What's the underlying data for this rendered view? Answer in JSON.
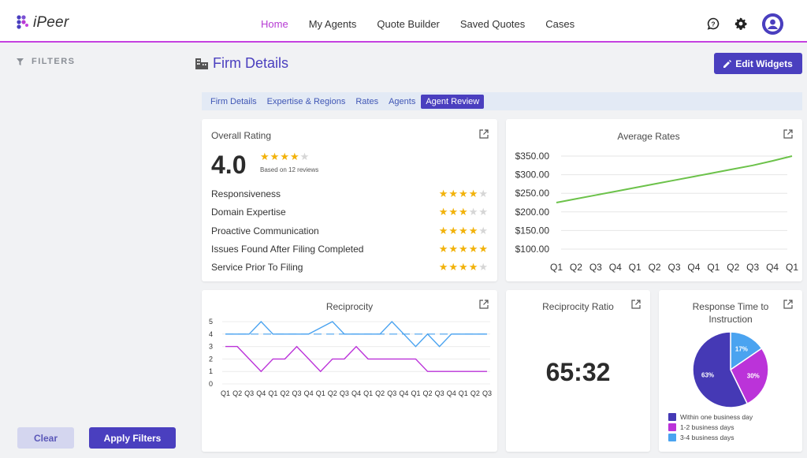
{
  "brand": {
    "name": "iPeer"
  },
  "nav": {
    "items": [
      "Home",
      "My Agents",
      "Quote Builder",
      "Saved Quotes",
      "Cases"
    ],
    "active": 0
  },
  "header_icons": [
    "help-icon",
    "gear-icon",
    "user-avatar-icon"
  ],
  "sidebar": {
    "filters_label": "FILTERS",
    "clear_label": "Clear",
    "apply_label": "Apply Filters"
  },
  "page": {
    "title": "Firm Details",
    "edit_label": "Edit Widgets"
  },
  "tabs": {
    "items": [
      "Firm Details",
      "Expertise & Regions",
      "Rates",
      "Agents",
      "Agent Review"
    ],
    "active": 4
  },
  "overall_rating": {
    "title": "Overall Rating",
    "score": "4.0",
    "stars": 4,
    "based_on": "Based on 12 reviews",
    "criteria": [
      {
        "label": "Responsiveness",
        "stars": 4
      },
      {
        "label": "Domain Expertise",
        "stars": 3
      },
      {
        "label": "Proactive Communication",
        "stars": 4
      },
      {
        "label": "Issues Found After Filing Completed",
        "stars": 5
      },
      {
        "label": "Service Prior To Filing",
        "stars": 4
      }
    ]
  },
  "reciprocity_ratio": {
    "title": "Reciprocity Ratio",
    "value": "65:32"
  },
  "colors": {
    "accent": "#4a3fbf",
    "magenta": "#b63bd3",
    "star": "#f2b20a",
    "green": "#6cc24a",
    "blue": "#4aa3f0",
    "purple": "#bb33d9",
    "navy": "#4539b5"
  },
  "chart_data": [
    {
      "type": "line",
      "title": "Average Rates",
      "x": [
        "Q1",
        "Q2",
        "Q3",
        "Q4",
        "Q1",
        "Q2",
        "Q3",
        "Q4",
        "Q1",
        "Q2",
        "Q3",
        "Q4",
        "Q1"
      ],
      "series": [
        {
          "values": [
            225,
            235,
            245,
            255,
            265,
            275,
            285,
            295,
            305,
            315,
            325,
            337,
            350
          ]
        }
      ],
      "yticks": [
        "$100.00",
        "$150.00",
        "$200.00",
        "$250.00",
        "$300.00",
        "$350.00"
      ],
      "ylim": [
        100,
        350
      ],
      "grid": true
    },
    {
      "type": "line",
      "title": "Reciprocity",
      "x": [
        "Q1",
        "Q2",
        "Q3",
        "Q4",
        "Q1",
        "Q2",
        "Q3",
        "Q4",
        "Q1",
        "Q2",
        "Q3",
        "Q4",
        "Q1",
        "Q2",
        "Q3",
        "Q4",
        "Q1",
        "Q2",
        "Q3",
        "Q4",
        "Q1",
        "Q2",
        "Q3"
      ],
      "series": [
        {
          "values": [
            4,
            4,
            4,
            5,
            4,
            4,
            4,
            4,
            4.5,
            5,
            4,
            4,
            4,
            4,
            5,
            4,
            3,
            4,
            3,
            4,
            4,
            4,
            4
          ],
          "color": "#4aa3f0"
        },
        {
          "values": [
            4,
            4,
            4,
            4,
            4,
            4,
            4,
            4,
            4,
            4,
            4,
            4,
            4,
            4,
            4,
            4,
            4,
            4,
            4,
            4,
            4,
            4,
            4
          ],
          "color": "#4aa3f0",
          "dashed": true
        },
        {
          "values": [
            3,
            3,
            2,
            1,
            2,
            2,
            3,
            2,
            1,
            2,
            2,
            3,
            2,
            2,
            2,
            2,
            2,
            1,
            1,
            1,
            1,
            1,
            1
          ],
          "color": "#bb33d9"
        }
      ],
      "yticks": [
        "0",
        "1",
        "2",
        "3",
        "4",
        "5"
      ],
      "ylim": [
        0,
        5
      ],
      "grid": true
    },
    {
      "type": "pie",
      "title": "Response Time to Instruction",
      "categories": [
        "Within one business day",
        "1-2 business days",
        "3-4 business days"
      ],
      "values": [
        63,
        30,
        17
      ],
      "labels": [
        "63%",
        "30%",
        "17%"
      ],
      "colors": [
        "#4539b5",
        "#bb33d9",
        "#4aa3f0"
      ]
    }
  ]
}
